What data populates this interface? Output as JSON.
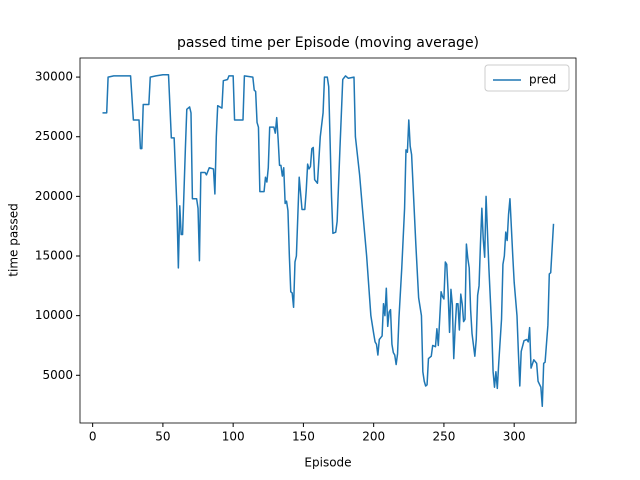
{
  "chart_data": {
    "type": "line",
    "title": "passed time per Episode (moving average)",
    "x_label": "Episode",
    "y_label": "time passed",
    "x": [
      7,
      10,
      11,
      15,
      20,
      25,
      27,
      29,
      33,
      34,
      35,
      36,
      40,
      41,
      45,
      50,
      54,
      56,
      58,
      60,
      61,
      62,
      63,
      64,
      66,
      67,
      69,
      70,
      71,
      74,
      75,
      76,
      77,
      80,
      81,
      83,
      86,
      87,
      88,
      89,
      92,
      93,
      96,
      97,
      100,
      101,
      107,
      108,
      114,
      115,
      116,
      117,
      118,
      119,
      122,
      123,
      124,
      125,
      126,
      129,
      130,
      131,
      132,
      133,
      134,
      135,
      136,
      137,
      138,
      139,
      140,
      141,
      142,
      143,
      144,
      145,
      147,
      149,
      151,
      152,
      153,
      154,
      155,
      156,
      157,
      158,
      160,
      162,
      164,
      165,
      167,
      168,
      170,
      171,
      173,
      174,
      176,
      178,
      180,
      182,
      186,
      187,
      190,
      192,
      195,
      198,
      200,
      201,
      202,
      203,
      204,
      206,
      207,
      208,
      209,
      210,
      211,
      212,
      213,
      214,
      215,
      216,
      217,
      218,
      220,
      222,
      223,
      224,
      225,
      226,
      227,
      230,
      232,
      234,
      235,
      236,
      237,
      238,
      239,
      241,
      242,
      244,
      245,
      246,
      248,
      249,
      250,
      251,
      252,
      253,
      254,
      255,
      256,
      257,
      258,
      259,
      260,
      261,
      262,
      263,
      264,
      265,
      266,
      267,
      268,
      269,
      270,
      272,
      273,
      274,
      275,
      276,
      277,
      278,
      279,
      280,
      282,
      284,
      285,
      286,
      287,
      288,
      289,
      291,
      292,
      293,
      294,
      295,
      296,
      297,
      299,
      300,
      302,
      303,
      304,
      305,
      307,
      309,
      310,
      311,
      312,
      314,
      316,
      317,
      319,
      320,
      321,
      322,
      324,
      325,
      326,
      328
    ],
    "series": [
      {
        "name": "pred",
        "color": "#1f77b4",
        "values": [
          27000,
          27000,
          30000,
          30100,
          30100,
          30100,
          30100,
          26400,
          26400,
          24000,
          24000,
          27700,
          27700,
          30000,
          30100,
          30200,
          30200,
          24900,
          24900,
          19000,
          14000,
          19200,
          16800,
          16800,
          24000,
          27300,
          27500,
          27000,
          19800,
          19800,
          19000,
          14600,
          22000,
          22000,
          21800,
          22400,
          22300,
          20200,
          25000,
          27600,
          27400,
          29700,
          29800,
          30100,
          30100,
          26400,
          26400,
          30100,
          30000,
          28900,
          28800,
          26200,
          25800,
          20400,
          20400,
          21600,
          21200,
          22400,
          25800,
          25800,
          25300,
          26600,
          24800,
          22600,
          22600,
          21700,
          22400,
          19400,
          19600,
          18800,
          15000,
          12000,
          11900,
          10700,
          14500,
          15000,
          21600,
          18900,
          18900,
          20500,
          22700,
          22300,
          22500,
          24000,
          24100,
          21400,
          21100,
          25000,
          27000,
          30000,
          30000,
          29200,
          20000,
          16900,
          17000,
          17900,
          24000,
          29800,
          30100,
          29900,
          30000,
          25000,
          21800,
          19000,
          15000,
          10000,
          8500,
          7800,
          7600,
          6700,
          8000,
          8300,
          11000,
          10000,
          12300,
          9100,
          10300,
          10500,
          7600,
          6900,
          6700,
          5900,
          6800,
          9800,
          14000,
          19000,
          23900,
          23700,
          26400,
          24200,
          23500,
          16000,
          11500,
          10000,
          5300,
          4500,
          4100,
          4200,
          6400,
          6600,
          7500,
          7400,
          8900,
          7500,
          12000,
          11600,
          11400,
          14500,
          14300,
          11900,
          8600,
          12200,
          10900,
          6400,
          9000,
          11000,
          11000,
          8800,
          11800,
          11000,
          9500,
          9700,
          16000,
          14800,
          14000,
          10500,
          8500,
          6600,
          8000,
          11700,
          12500,
          16000,
          19000,
          16400,
          14900,
          20000,
          14000,
          9000,
          5300,
          4000,
          5300,
          3900,
          6000,
          9700,
          14300,
          15000,
          17000,
          16300,
          18500,
          19800,
          15000,
          12800,
          10000,
          6900,
          4100,
          7000,
          7900,
          8000,
          7800,
          9000,
          5600,
          6300,
          6000,
          4500,
          4000,
          2400,
          6000,
          6100,
          9200,
          13500,
          13600,
          17700
        ]
      }
    ],
    "xlim": [
      -9,
      344
    ],
    "ylim": [
      1000,
      31600
    ],
    "xticks": [
      0,
      50,
      100,
      150,
      200,
      250,
      300
    ],
    "yticks": [
      5000,
      10000,
      15000,
      20000,
      25000,
      30000
    ],
    "legend": "upper right"
  }
}
